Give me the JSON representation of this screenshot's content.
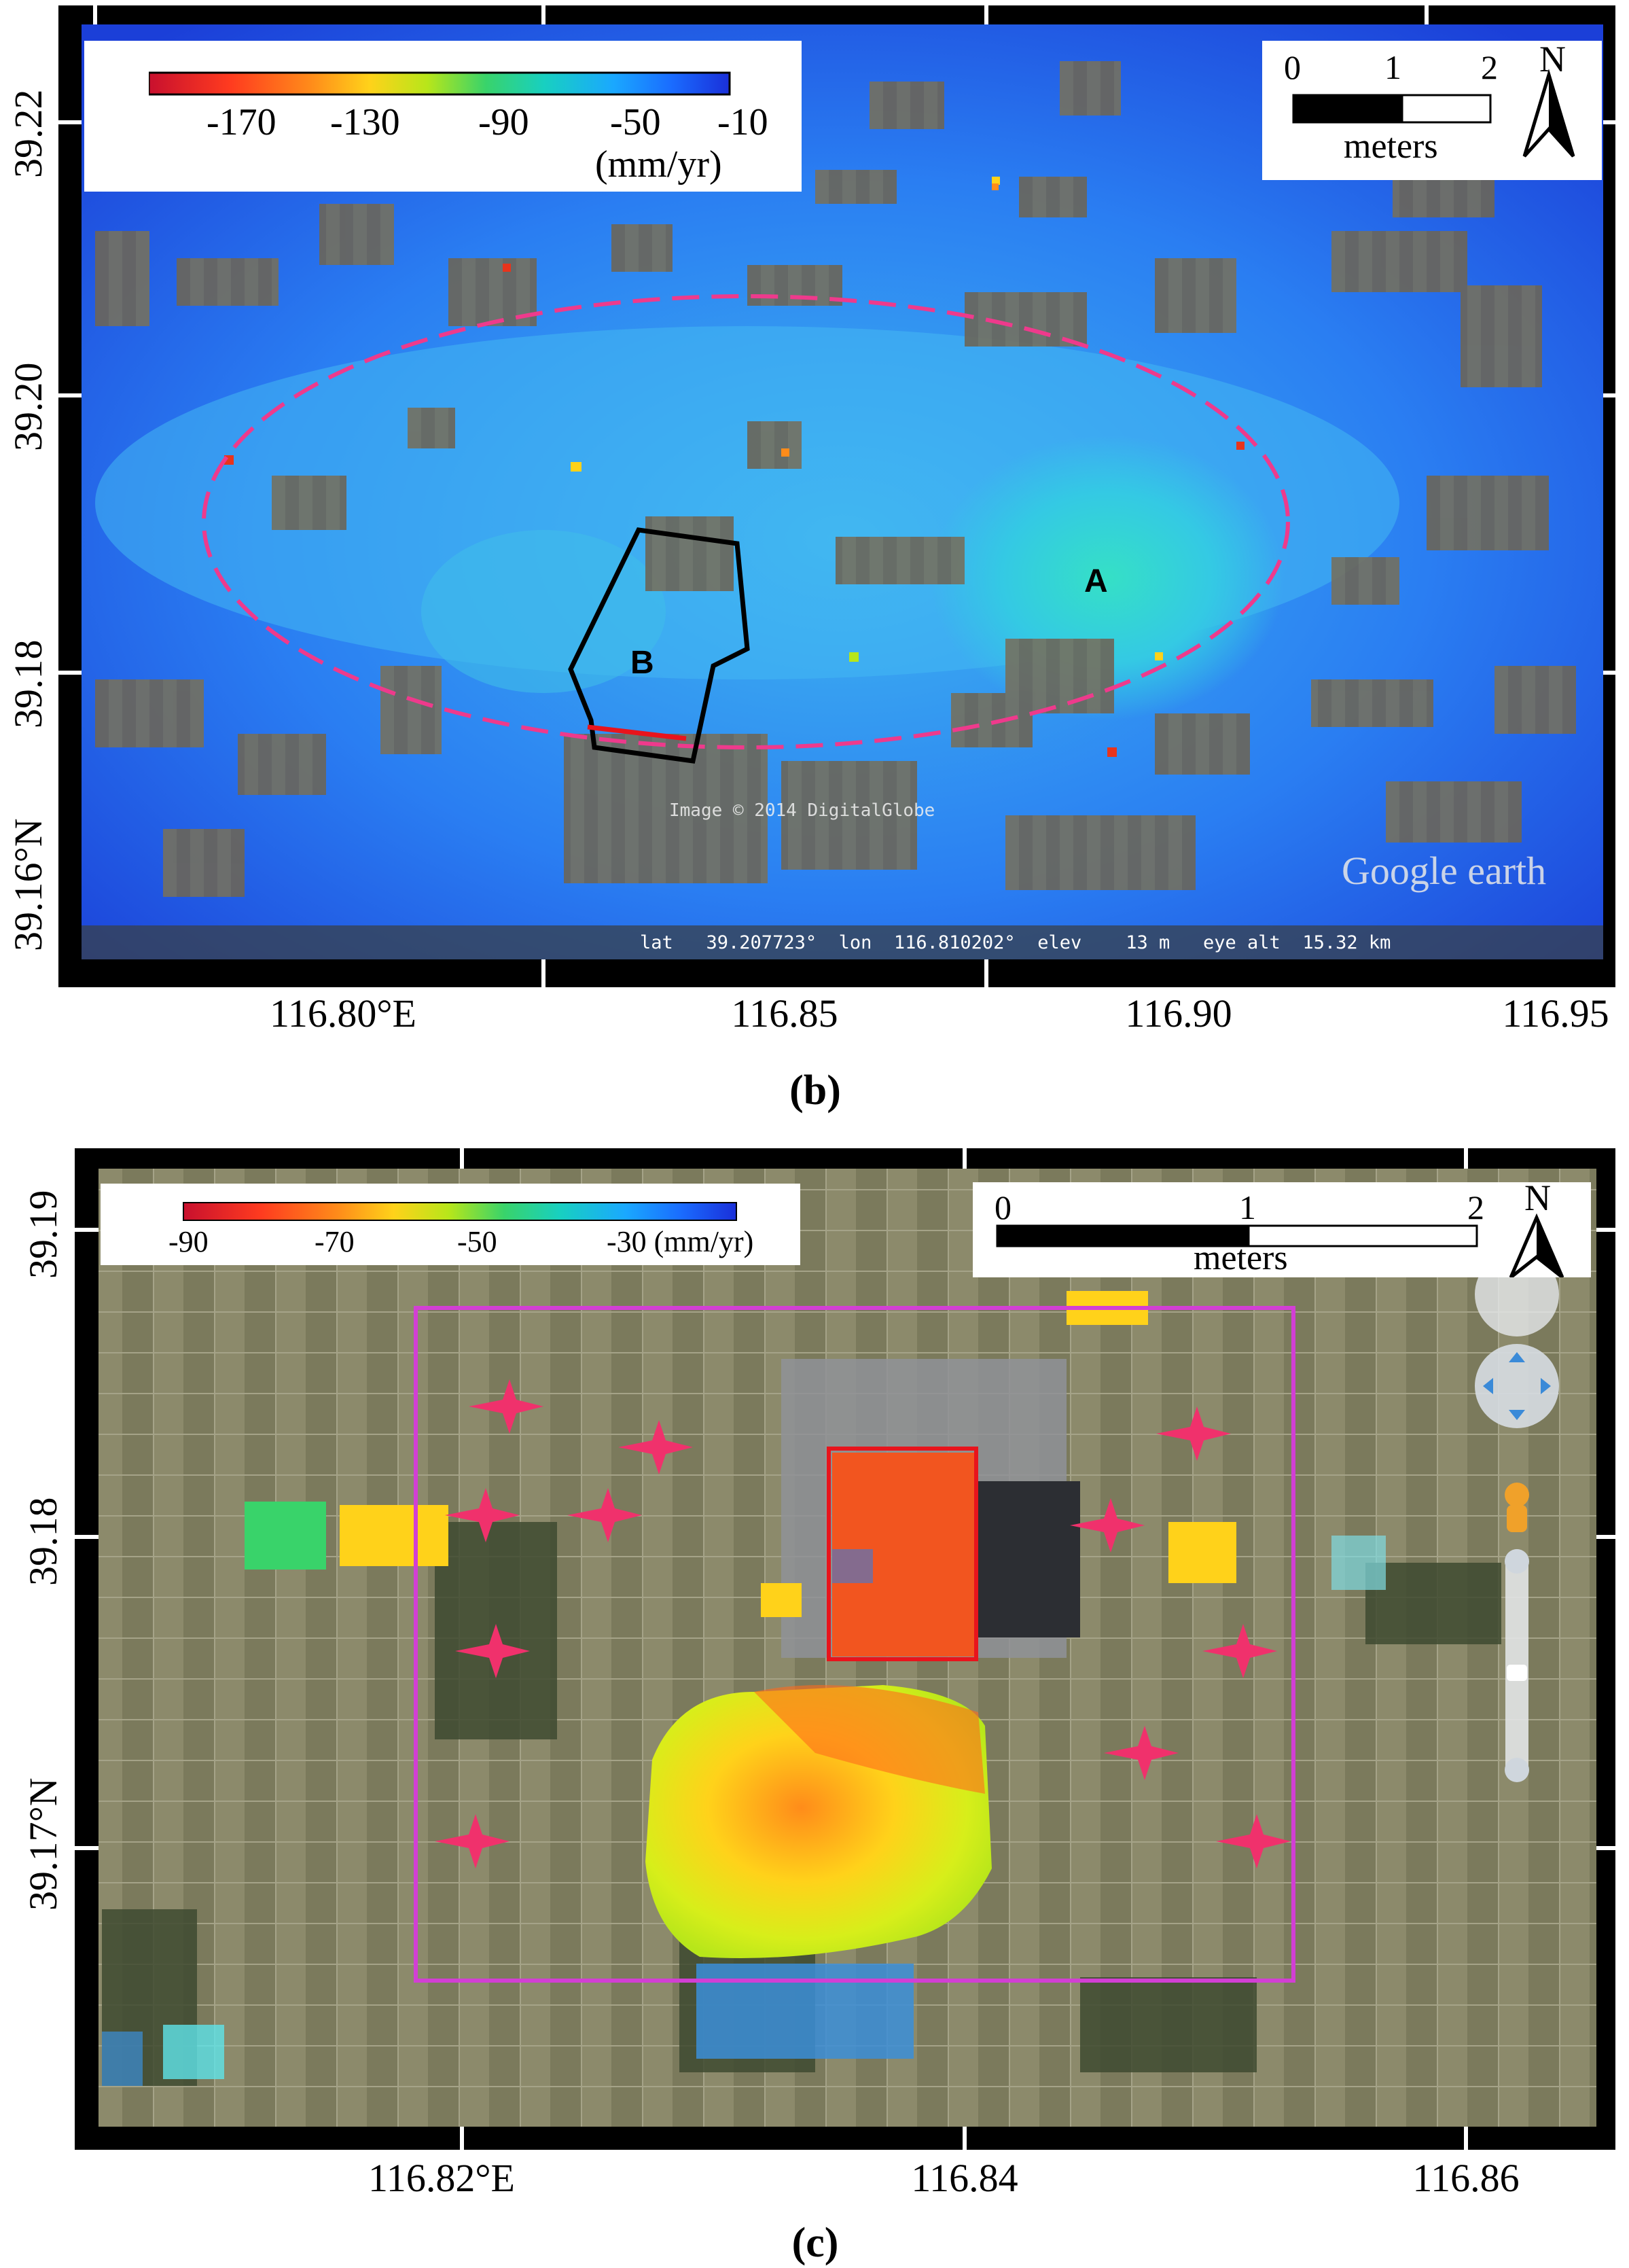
{
  "panel_b": {
    "caption": "(b)",
    "colorbar": {
      "tick_labels": [
        "-170",
        "-130",
        "-90",
        "-50",
        "-10"
      ],
      "unit": "(mm/yr)",
      "colors": [
        "#c8102e",
        "#ff3b1f",
        "#ff8c1a",
        "#ffd21a",
        "#b7e61a",
        "#39d36a",
        "#18d0c0",
        "#1aa8ff",
        "#1a6cff",
        "#1a2fd9"
      ]
    },
    "scalebar": {
      "labels": [
        "0",
        "1",
        "2"
      ],
      "unit": "meters",
      "north": "N"
    },
    "lat_labels": [
      "39.22",
      "39.20",
      "39.18",
      "39.16°N"
    ],
    "lon_labels": [
      "116.80°E",
      "116.85",
      "116.90",
      "116.95"
    ],
    "regions": {
      "a": "A",
      "b": "B"
    },
    "watermark": "Image © 2014 DigitalGlobe",
    "logo": "Google earth",
    "status_bar": "lat   39.207723°  lon  116.810202°  elev    13 m   eye alt  15.32 km"
  },
  "panel_c": {
    "caption": "(c)",
    "colorbar": {
      "tick_labels": [
        "-90",
        "-70",
        "-50",
        "-30 (mm/yr)"
      ],
      "colors": [
        "#c8102e",
        "#ff3b1f",
        "#ff8c1a",
        "#ffd21a",
        "#b7e61a",
        "#39d36a",
        "#18d0c0",
        "#1aa8ff",
        "#1a6cff",
        "#1a2fd9"
      ]
    },
    "scalebar": {
      "labels": [
        "0",
        "1",
        "2"
      ],
      "unit": "meters",
      "north": "N"
    },
    "lat_labels": [
      "39.19",
      "39.18",
      "39.17°N"
    ],
    "lon_labels": [
      "116.82°E",
      "116.84",
      "116.86"
    ]
  }
}
